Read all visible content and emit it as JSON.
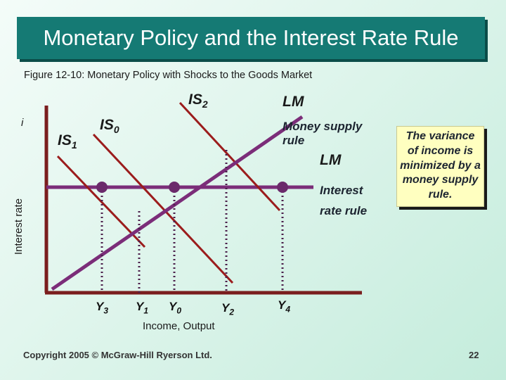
{
  "slide": {
    "title": "Monetary Policy and the Interest Rate Rule",
    "subtitle": "Figure 12-10: Monetary Policy with Shocks to the Goods Market",
    "copyright": "Copyright 2005 © McGraw-Hill Ryerson Ltd.",
    "page_number": "22"
  },
  "diagram": {
    "y_axis_label": "Interest rate",
    "y_axis_symbol": "i",
    "x_axis_label": "Income, Output",
    "curves": {
      "is2": {
        "name": "IS",
        "sub": "2"
      },
      "is0": {
        "name": "IS",
        "sub": "0"
      },
      "is1": {
        "name": "IS",
        "sub": "1"
      },
      "lm_top": "LM",
      "lm_mid": "LM"
    },
    "annotations": {
      "money_supply_rule_line1": "Money supply",
      "money_supply_rule_line2": "rule",
      "interest_rate_rule_line1": "Interest",
      "interest_rate_rule_line2": "rate rule"
    },
    "x_ticks": [
      {
        "name": "Y",
        "sub": "3"
      },
      {
        "name": "Y",
        "sub": "1"
      },
      {
        "name": "Y",
        "sub": "0"
      },
      {
        "name": "Y",
        "sub": "2"
      },
      {
        "name": "Y",
        "sub": "4"
      }
    ],
    "note": "The variance of income is minimized by a money supply rule.",
    "colors": {
      "axis": "#7a1e1e",
      "is_curves": "#9b1c1c",
      "lm_line": "#7b2d79",
      "dots": "#6b2a6b",
      "title_bg": "#157a74"
    }
  }
}
